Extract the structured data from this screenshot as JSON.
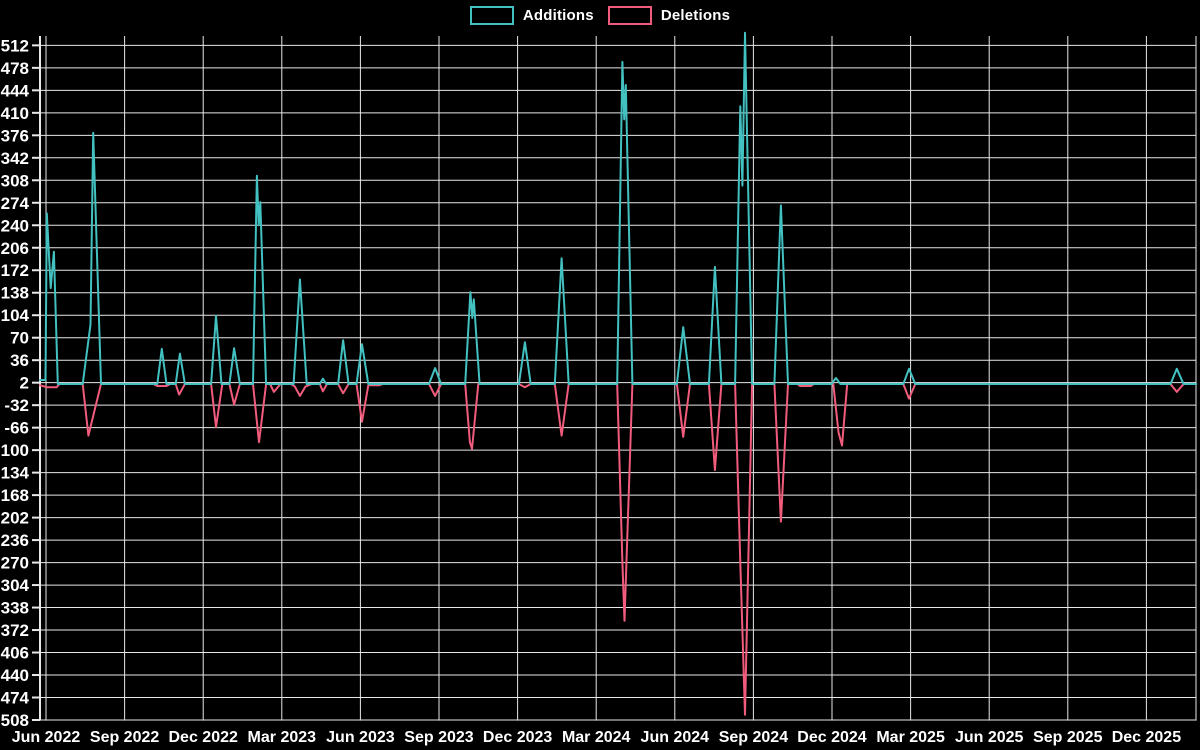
{
  "chart_data": {
    "type": "line",
    "title": "",
    "xlabel": "",
    "ylabel": "",
    "grid": true,
    "background_color": "#000000",
    "gridline_color": "#e8e8e8",
    "text_color": "#ffffff",
    "legend_position": "top-center",
    "x_unit": "months since Jun 2022",
    "ylim": [
      -509,
      531
    ],
    "y_tick_step": 34,
    "y_ticks": [
      512,
      478,
      444,
      410,
      376,
      342,
      308,
      274,
      240,
      206,
      172,
      138,
      104,
      70,
      36,
      2,
      -32,
      -66,
      -100,
      -134,
      -168,
      -202,
      -236,
      -270,
      -304,
      -338,
      -372,
      -406,
      -440,
      -474,
      -508
    ],
    "x_tick_labels": [
      "Jun 2022",
      "Sep 2022",
      "Dec 2022",
      "Mar 2023",
      "Jun 2023",
      "Sep 2023",
      "Dec 2023",
      "Mar 2024",
      "Jun 2024",
      "Sep 2024",
      "Dec 2024",
      "Mar 2025",
      "Jun 2025",
      "Sep 2025",
      "Dec 2025"
    ],
    "x_tick_months": [
      0,
      3,
      6,
      9,
      12,
      15,
      18,
      21,
      24,
      27,
      30,
      33,
      36,
      39,
      42
    ],
    "series": [
      {
        "name": "Additions",
        "color": "#43c0c0",
        "points": [
          [
            -0.23,
            6
          ],
          [
            -0.02,
            6
          ],
          [
            0.03,
            258
          ],
          [
            0.18,
            145
          ],
          [
            0.3,
            200
          ],
          [
            0.45,
            0
          ],
          [
            1.4,
            0
          ],
          [
            1.7,
            90
          ],
          [
            1.8,
            380
          ],
          [
            2.1,
            0
          ],
          [
            4.25,
            0
          ],
          [
            4.42,
            53
          ],
          [
            4.6,
            0
          ],
          [
            4.95,
            0
          ],
          [
            5.11,
            46
          ],
          [
            5.3,
            0
          ],
          [
            6.3,
            0
          ],
          [
            6.49,
            103
          ],
          [
            6.7,
            0
          ],
          [
            7.0,
            0
          ],
          [
            7.18,
            54
          ],
          [
            7.4,
            0
          ],
          [
            7.9,
            0
          ],
          [
            8.05,
            315
          ],
          [
            8.12,
            240
          ],
          [
            8.18,
            275
          ],
          [
            8.4,
            0
          ],
          [
            9.45,
            0
          ],
          [
            9.69,
            158
          ],
          [
            9.95,
            0
          ],
          [
            10.45,
            0
          ],
          [
            10.57,
            8
          ],
          [
            10.7,
            0
          ],
          [
            11.15,
            0
          ],
          [
            11.34,
            66
          ],
          [
            11.55,
            0
          ],
          [
            11.85,
            0
          ],
          [
            12.06,
            60
          ],
          [
            12.3,
            0
          ],
          [
            14.62,
            0
          ],
          [
            14.85,
            24
          ],
          [
            15.08,
            0
          ],
          [
            16.0,
            0
          ],
          [
            16.2,
            139
          ],
          [
            16.27,
            100
          ],
          [
            16.33,
            128
          ],
          [
            16.55,
            0
          ],
          [
            18.05,
            0
          ],
          [
            18.28,
            63
          ],
          [
            18.5,
            0
          ],
          [
            19.42,
            0
          ],
          [
            19.68,
            190
          ],
          [
            19.95,
            0
          ],
          [
            21.8,
            0
          ],
          [
            22.0,
            487
          ],
          [
            22.07,
            400
          ],
          [
            22.13,
            452
          ],
          [
            22.38,
            0
          ],
          [
            24.08,
            0
          ],
          [
            24.32,
            86
          ],
          [
            24.58,
            0
          ],
          [
            25.3,
            0
          ],
          [
            25.53,
            177
          ],
          [
            25.78,
            0
          ],
          [
            26.3,
            0
          ],
          [
            26.5,
            420
          ],
          [
            26.58,
            300
          ],
          [
            26.68,
            531
          ],
          [
            26.95,
            0
          ],
          [
            27.8,
            0
          ],
          [
            28.05,
            270
          ],
          [
            28.32,
            0
          ],
          [
            29.98,
            0
          ],
          [
            30.15,
            9
          ],
          [
            30.32,
            0
          ],
          [
            32.72,
            0
          ],
          [
            32.94,
            23
          ],
          [
            33.18,
            0
          ],
          [
            42.92,
            0
          ],
          [
            43.16,
            23
          ],
          [
            43.42,
            0
          ],
          [
            43.9,
            0
          ]
        ]
      },
      {
        "name": "Deletions",
        "color": "#f25c7c",
        "points": [
          [
            -0.23,
            -2
          ],
          [
            0.05,
            -5
          ],
          [
            0.4,
            -5
          ],
          [
            0.52,
            0
          ],
          [
            1.4,
            0
          ],
          [
            1.62,
            -78
          ],
          [
            2.1,
            0
          ],
          [
            4.1,
            0
          ],
          [
            4.25,
            -3
          ],
          [
            4.6,
            -3
          ],
          [
            4.75,
            0
          ],
          [
            4.95,
            0
          ],
          [
            5.08,
            -16
          ],
          [
            5.3,
            0
          ],
          [
            6.3,
            0
          ],
          [
            6.49,
            -65
          ],
          [
            6.73,
            0
          ],
          [
            7.0,
            0
          ],
          [
            7.18,
            -31
          ],
          [
            7.4,
            0
          ],
          [
            7.9,
            0
          ],
          [
            8.13,
            -88
          ],
          [
            8.4,
            0
          ],
          [
            8.55,
            0
          ],
          [
            8.7,
            -12
          ],
          [
            8.95,
            0
          ],
          [
            9.35,
            0
          ],
          [
            9.5,
            -4
          ],
          [
            9.69,
            -18
          ],
          [
            9.9,
            -4
          ],
          [
            10.15,
            0
          ],
          [
            10.45,
            0
          ],
          [
            10.57,
            -11
          ],
          [
            10.72,
            0
          ],
          [
            11.15,
            0
          ],
          [
            11.34,
            -14
          ],
          [
            11.55,
            0
          ],
          [
            11.85,
            0
          ],
          [
            12.06,
            -57
          ],
          [
            12.3,
            -2
          ],
          [
            12.72,
            -2
          ],
          [
            12.85,
            0
          ],
          [
            14.62,
            0
          ],
          [
            14.85,
            -18
          ],
          [
            15.08,
            0
          ],
          [
            16.0,
            0
          ],
          [
            16.18,
            -88
          ],
          [
            16.26,
            -98
          ],
          [
            16.5,
            0
          ],
          [
            18.05,
            0
          ],
          [
            18.28,
            -5
          ],
          [
            18.5,
            0
          ],
          [
            19.42,
            0
          ],
          [
            19.68,
            -78
          ],
          [
            19.95,
            0
          ],
          [
            21.8,
            0
          ],
          [
            22.0,
            -270
          ],
          [
            22.08,
            -358
          ],
          [
            22.38,
            0
          ],
          [
            24.08,
            0
          ],
          [
            24.32,
            -80
          ],
          [
            24.58,
            0
          ],
          [
            25.3,
            0
          ],
          [
            25.53,
            -130
          ],
          [
            25.78,
            0
          ],
          [
            26.3,
            0
          ],
          [
            26.5,
            -270
          ],
          [
            26.68,
            -500
          ],
          [
            26.95,
            0
          ],
          [
            27.8,
            0
          ],
          [
            28.05,
            -208
          ],
          [
            28.32,
            0
          ],
          [
            28.68,
            0
          ],
          [
            28.78,
            -3
          ],
          [
            29.2,
            -3
          ],
          [
            29.3,
            0
          ],
          [
            30.05,
            0
          ],
          [
            30.25,
            -73
          ],
          [
            30.38,
            -93
          ],
          [
            30.58,
            0
          ],
          [
            32.72,
            0
          ],
          [
            32.94,
            -22
          ],
          [
            33.18,
            0
          ],
          [
            42.92,
            0
          ],
          [
            43.16,
            -12
          ],
          [
            43.42,
            0
          ],
          [
            43.9,
            0
          ]
        ]
      }
    ]
  }
}
